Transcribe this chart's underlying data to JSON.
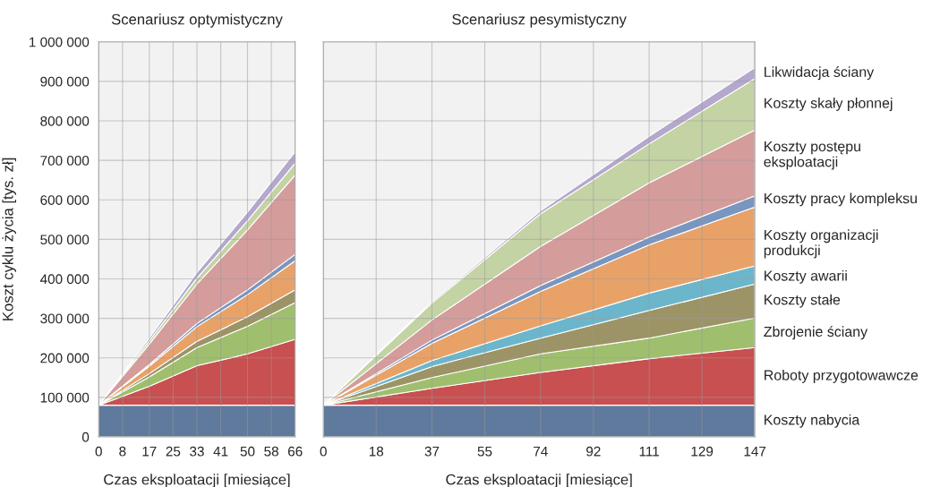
{
  "chart_data": [
    {
      "type": "area",
      "stacked": true,
      "title": "Scenariusz optymistyczny",
      "xlabel": "Czas eksploatacji [miesiące]",
      "ylabel": "Koszt cyklu życia [tys. zł]",
      "x": [
        0,
        17,
        33,
        50,
        66
      ],
      "xlim": [
        0,
        66
      ],
      "xticks": [
        0,
        8,
        17,
        25,
        33,
        41,
        50,
        58,
        66
      ],
      "ylim": [
        0,
        1000000
      ],
      "yticks": [
        {
          "value": 0,
          "label": "0"
        },
        {
          "value": 100000,
          "label": "100 000"
        },
        {
          "value": 200000,
          "label": "200 000"
        },
        {
          "value": 300000,
          "label": "300 000"
        },
        {
          "value": 400000,
          "label": "400 000"
        },
        {
          "value": 500000,
          "label": "500 000"
        },
        {
          "value": 600000,
          "label": "600 000"
        },
        {
          "value": 700000,
          "label": "700 000"
        },
        {
          "value": 800000,
          "label": "800 000"
        },
        {
          "value": 900000,
          "label": "900 000"
        },
        {
          "value": 1000000,
          "label": "1 000 000"
        }
      ],
      "grid": true,
      "series": [
        {
          "color": "#5f7a9c",
          "values": [
            80000,
            80000,
            80000,
            80000,
            80000
          ]
        },
        {
          "color": "#c85050",
          "values": [
            0,
            48000,
            100000,
            130000,
            167000
          ]
        },
        {
          "color": "#9fbf6e",
          "values": [
            0,
            24000,
            46000,
            70000,
            93000
          ]
        },
        {
          "color": "#9c9466",
          "values": [
            0,
            8000,
            16000,
            24000,
            32000
          ]
        },
        {
          "color": "#e8a268",
          "values": [
            0,
            19000,
            37000,
            56000,
            74000
          ]
        },
        {
          "color": "#7896c0",
          "values": [
            0,
            4000,
            8000,
            12000,
            16000
          ]
        },
        {
          "color": "#d59c9c",
          "values": [
            0,
            52000,
            100000,
            152000,
            201000
          ]
        },
        {
          "color": "#c4d3a4",
          "values": [
            0,
            8000,
            15000,
            23000,
            30000
          ]
        },
        {
          "color": "#b4a8cc",
          "values": [
            0,
            7000,
            14000,
            22000,
            29000
          ]
        }
      ]
    },
    {
      "type": "area",
      "stacked": true,
      "title": "Scenariusz pesymistyczny",
      "xlabel": "Czas eksploatacji [miesiące]",
      "tick_labels": "x",
      "x": [
        0,
        37,
        74,
        111,
        147
      ],
      "xlim": [
        0,
        147
      ],
      "xticks": [
        0,
        18,
        37,
        55,
        74,
        92,
        111,
        129,
        147
      ],
      "ylim": [
        0,
        1000000
      ],
      "yticks": [
        0,
        100000,
        200000,
        300000,
        400000,
        500000,
        600000,
        700000,
        800000,
        900000,
        1000000
      ],
      "grid": true,
      "series": [
        {
          "name": "Koszty nabycia",
          "color": "#5f7a9c",
          "values": [
            80000,
            80000,
            80000,
            80000,
            80000
          ]
        },
        {
          "name": "Roboty przygotowawcze",
          "color": "#c85050",
          "values": [
            0,
            43000,
            83000,
            118000,
            146000
          ]
        },
        {
          "name": "Zbrojenie ściany",
          "color": "#9fbf6e",
          "values": [
            0,
            27000,
            47000,
            52000,
            75000
          ]
        },
        {
          "name": "Koszty stałe",
          "color": "#9c9466",
          "values": [
            0,
            28000,
            40000,
            70000,
            86000
          ]
        },
        {
          "name": "Koszty awarii",
          "color": "#6cb6cc",
          "values": [
            0,
            15000,
            31000,
            44000,
            46000
          ]
        },
        {
          "name": "Koszty organizacji produkcji",
          "color": "#e8a268",
          "values": [
            0,
            44000,
            87000,
            122000,
            149000
          ]
        },
        {
          "name": "Koszty pracy kompleksu",
          "color": "#7896c0",
          "values": [
            0,
            8000,
            15000,
            20000,
            28000
          ]
        },
        {
          "name": "Koszty postępu eksploatacji",
          "color": "#d59c9c",
          "values": [
            0,
            51000,
            99000,
            137000,
            167000
          ]
        },
        {
          "name": "Koszty skały płonnej",
          "color": "#c4d3a4",
          "values": [
            0,
            43000,
            83000,
            99000,
            130000
          ]
        },
        {
          "name": "Likwidacja ściany",
          "color": "#b4a8cc",
          "values": [
            0,
            4000,
            7000,
            19000,
            28000
          ]
        }
      ]
    }
  ]
}
